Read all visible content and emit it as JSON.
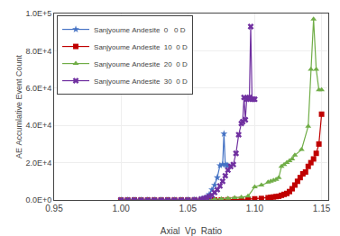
{
  "chart_data": {
    "type": "line",
    "xlabel": "Axial  Vp  Ratio",
    "ylabel": "AE Accumlative Event Count",
    "xlim": [
      0.95,
      1.155
    ],
    "ylim": [
      0,
      100000
    ],
    "xticks": [
      0.95,
      {
        "value": 1.0,
        "label": "1.00"
      },
      1.05,
      {
        "value": 1.1,
        "label": "1.10"
      },
      1.15
    ],
    "yticks": [
      {
        "value": 0,
        "label": "0.0E+0"
      },
      {
        "value": 20000,
        "label": "2.0E+4"
      },
      {
        "value": 40000,
        "label": "4.0E+4"
      },
      {
        "value": 60000,
        "label": "6.0E+4"
      },
      {
        "value": 80000,
        "label": "8.0E+4"
      },
      {
        "value": 100000,
        "label": "1.0E+5"
      }
    ],
    "grid": true,
    "legend": "upper left",
    "series": [
      {
        "name": "Sanjyoume Andesite  0   0 D",
        "color": "#4472C4",
        "marker": "star",
        "x": [
          1.0,
          1.005,
          1.01,
          1.015,
          1.02,
          1.025,
          1.03,
          1.035,
          1.04,
          1.045,
          1.05,
          1.055,
          1.06,
          1.062,
          1.064,
          1.066,
          1.068,
          1.07,
          1.072,
          1.074,
          1.076,
          1.077,
          1.078,
          1.079,
          1.08
        ],
        "values": [
          0,
          0,
          0,
          0,
          0,
          0,
          0,
          0,
          0,
          0,
          100,
          200,
          500,
          800,
          1500,
          3000,
          5500,
          8000,
          12000,
          18500,
          19000,
          35500,
          19000,
          18500,
          18500
        ]
      },
      {
        "name": "Sanjyoume Andesite  10  0 D",
        "color": "#C00000",
        "marker": "square",
        "x": [
          1.0,
          1.005,
          1.01,
          1.015,
          1.02,
          1.025,
          1.03,
          1.035,
          1.04,
          1.045,
          1.05,
          1.055,
          1.06,
          1.065,
          1.07,
          1.075,
          1.08,
          1.085,
          1.09,
          1.095,
          1.1,
          1.105,
          1.11,
          1.112,
          1.114,
          1.116,
          1.118,
          1.12,
          1.122,
          1.124,
          1.126,
          1.128,
          1.13,
          1.132,
          1.134,
          1.136,
          1.138,
          1.14,
          1.142,
          1.144,
          1.146,
          1.148,
          1.15
        ],
        "values": [
          0,
          0,
          0,
          0,
          0,
          0,
          0,
          0,
          0,
          0,
          0,
          0,
          0,
          0,
          0,
          0,
          100,
          200,
          300,
          400,
          600,
          800,
          1200,
          1400,
          1600,
          1800,
          2000,
          2500,
          3000,
          3500,
          4500,
          6000,
          8000,
          10000,
          12000,
          14000,
          15000,
          18000,
          20000,
          22000,
          25000,
          30000,
          46000
        ]
      },
      {
        "name": "Sanjyoume Andesite  20  0 D",
        "color": "#70AD47",
        "marker": "triangle-up",
        "x": [
          1.0,
          1.005,
          1.01,
          1.015,
          1.02,
          1.025,
          1.03,
          1.035,
          1.04,
          1.045,
          1.05,
          1.055,
          1.06,
          1.065,
          1.07,
          1.075,
          1.08,
          1.085,
          1.09,
          1.095,
          1.1,
          1.105,
          1.11,
          1.112,
          1.114,
          1.116,
          1.118,
          1.12,
          1.122,
          1.124,
          1.126,
          1.128,
          1.13,
          1.135,
          1.14,
          1.142,
          1.144,
          1.146,
          1.148,
          1.15
        ],
        "values": [
          0,
          0,
          0,
          0,
          0,
          0,
          0,
          0,
          0,
          0,
          0,
          0,
          0,
          200,
          400,
          600,
          900,
          1200,
          1500,
          2000,
          7000,
          8000,
          9500,
          10000,
          10500,
          11000,
          12000,
          18000,
          19000,
          20000,
          21000,
          22000,
          24000,
          27000,
          39500,
          70000,
          97000,
          70000,
          59000,
          59000
        ]
      },
      {
        "name": "Sanjyoume Andesite  30  0 D",
        "color": "#7030A0",
        "marker": "x",
        "x": [
          1.0,
          1.005,
          1.01,
          1.015,
          1.02,
          1.025,
          1.03,
          1.035,
          1.04,
          1.045,
          1.05,
          1.055,
          1.06,
          1.062,
          1.064,
          1.066,
          1.068,
          1.07,
          1.072,
          1.074,
          1.076,
          1.078,
          1.08,
          1.082,
          1.084,
          1.086,
          1.088,
          1.09,
          1.091,
          1.092,
          1.093,
          1.094,
          1.095,
          1.096,
          1.097,
          1.098,
          1.099,
          1.1
        ],
        "values": [
          0,
          0,
          0,
          0,
          0,
          0,
          0,
          0,
          0,
          0,
          100,
          200,
          500,
          800,
          1200,
          1800,
          2500,
          4000,
          5500,
          7500,
          10000,
          13000,
          16000,
          18000,
          19000,
          25000,
          35000,
          41000,
          42000,
          55000,
          43000,
          54000,
          54500,
          55000,
          93000,
          54000,
          54000,
          54000
        ]
      }
    ]
  }
}
